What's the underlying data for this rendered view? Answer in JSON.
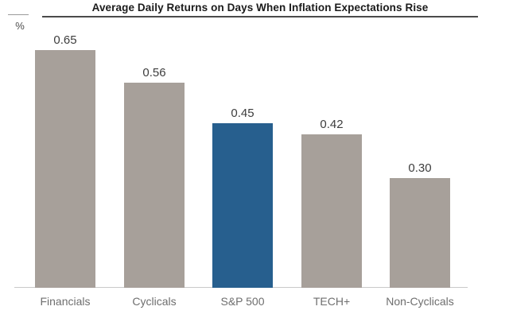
{
  "chart_data": {
    "type": "bar",
    "title": "Average Daily Returns on Days When Inflation Expectations Rise",
    "ylabel": "%",
    "xlabel": "",
    "categories": [
      "Financials",
      "Cyclicals",
      "S&P 500",
      "TECH+",
      "Non-Cyclicals"
    ],
    "values": [
      0.65,
      0.56,
      0.45,
      0.42,
      0.3
    ],
    "value_labels": [
      "0.65",
      "0.56",
      "0.45",
      "0.42",
      "0.30"
    ],
    "ylim": [
      0,
      0.7
    ],
    "grid": false,
    "legend": "none",
    "highlighted_category": "S&P 500"
  },
  "colors": {
    "bar_default": "#A7A09A",
    "bar_highlight": "#275F8E",
    "highlight_index": 2,
    "axis_line": "#C9C9C9",
    "title_underline": "#4B4B4B",
    "title_text": "#1B1B1B",
    "value_label_text": "#3D3D3D",
    "category_label_text": "#6E6E6E"
  }
}
